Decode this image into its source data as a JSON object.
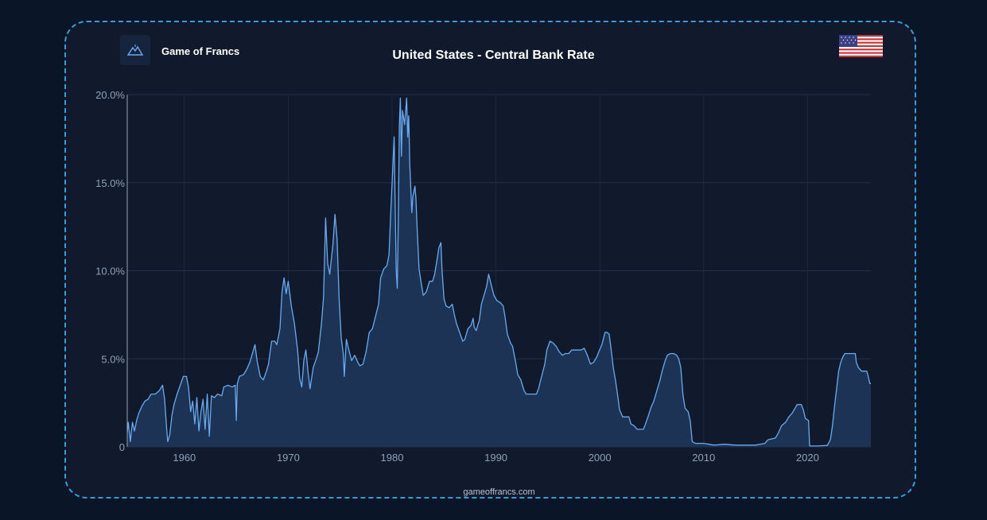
{
  "brand": {
    "name": "Game of Francs",
    "logo_icon": "mountain-logo-icon"
  },
  "flag_icon": "us-flag-icon",
  "footer": "gameoffrancs.com",
  "colors": {
    "background": "#0a1628",
    "card": "#111a2c",
    "border": "#3a9bd9",
    "line": "#6aaaf0",
    "fill": "#1e3557"
  },
  "chart_data": {
    "type": "area",
    "title": "United States - Central Bank Rate",
    "xlabel": "",
    "ylabel": "",
    "xlim": [
      1954.5,
      2026.1
    ],
    "ylim": [
      0,
      20
    ],
    "y_ticks": [
      0,
      5,
      10,
      15,
      20
    ],
    "y_tick_labels": [
      "0",
      "5.0%",
      "10.0%",
      "15.0%",
      "20.0%"
    ],
    "x_ticks": [
      1960,
      1970,
      1980,
      1990,
      2000,
      2010,
      2020
    ],
    "x_tick_labels": [
      "1960",
      "1970",
      "1980",
      "1990",
      "2000",
      "2010",
      "2020"
    ],
    "grid": true,
    "series": [
      {
        "values": [
          [
            1954.5,
            0.8
          ],
          [
            1954.6,
            1.4
          ],
          [
            1954.8,
            0.3
          ],
          [
            1955.0,
            1.4
          ],
          [
            1955.2,
            0.9
          ],
          [
            1955.4,
            1.5
          ],
          [
            1955.6,
            1.9
          ],
          [
            1955.9,
            2.3
          ],
          [
            1956.2,
            2.6
          ],
          [
            1956.5,
            2.7
          ],
          [
            1956.8,
            3.0
          ],
          [
            1957.2,
            3.0
          ],
          [
            1957.6,
            3.2
          ],
          [
            1957.9,
            3.5
          ],
          [
            1958.1,
            2.7
          ],
          [
            1958.3,
            1.0
          ],
          [
            1958.4,
            0.3
          ],
          [
            1958.6,
            0.7
          ],
          [
            1958.8,
            1.8
          ],
          [
            1959.0,
            2.4
          ],
          [
            1959.3,
            3.0
          ],
          [
            1959.6,
            3.5
          ],
          [
            1959.9,
            4.0
          ],
          [
            1960.2,
            4.0
          ],
          [
            1960.4,
            3.4
          ],
          [
            1960.6,
            2.0
          ],
          [
            1960.8,
            2.6
          ],
          [
            1961.0,
            1.3
          ],
          [
            1961.2,
            2.8
          ],
          [
            1961.4,
            0.9
          ],
          [
            1961.6,
            2.0
          ],
          [
            1961.8,
            2.7
          ],
          [
            1962.0,
            1.0
          ],
          [
            1962.2,
            3.0
          ],
          [
            1962.4,
            0.6
          ],
          [
            1962.6,
            2.9
          ],
          [
            1962.9,
            2.8
          ],
          [
            1963.2,
            3.0
          ],
          [
            1963.6,
            2.9
          ],
          [
            1963.8,
            3.4
          ],
          [
            1964.2,
            3.5
          ],
          [
            1964.6,
            3.4
          ],
          [
            1964.9,
            3.5
          ],
          [
            1965.0,
            1.5
          ],
          [
            1965.1,
            3.6
          ],
          [
            1965.3,
            4.0
          ],
          [
            1965.7,
            4.1
          ],
          [
            1966.0,
            4.4
          ],
          [
            1966.3,
            4.8
          ],
          [
            1966.6,
            5.4
          ],
          [
            1966.8,
            5.8
          ],
          [
            1967.0,
            4.9
          ],
          [
            1967.3,
            4.0
          ],
          [
            1967.6,
            3.8
          ],
          [
            1967.9,
            4.3
          ],
          [
            1968.1,
            4.7
          ],
          [
            1968.4,
            6.0
          ],
          [
            1968.7,
            6.0
          ],
          [
            1968.9,
            5.8
          ],
          [
            1969.2,
            6.7
          ],
          [
            1969.4,
            8.8
          ],
          [
            1969.6,
            9.6
          ],
          [
            1969.8,
            8.7
          ],
          [
            1970.0,
            9.4
          ],
          [
            1970.3,
            8.0
          ],
          [
            1970.6,
            7.0
          ],
          [
            1970.9,
            5.5
          ],
          [
            1971.1,
            3.9
          ],
          [
            1971.3,
            3.4
          ],
          [
            1971.5,
            4.9
          ],
          [
            1971.7,
            5.5
          ],
          [
            1971.9,
            4.3
          ],
          [
            1972.1,
            3.3
          ],
          [
            1972.4,
            4.5
          ],
          [
            1972.7,
            5.0
          ],
          [
            1972.9,
            5.4
          ],
          [
            1973.2,
            7.0
          ],
          [
            1973.4,
            8.5
          ],
          [
            1973.6,
            13.0
          ],
          [
            1973.8,
            10.4
          ],
          [
            1974.0,
            9.8
          ],
          [
            1974.3,
            11.5
          ],
          [
            1974.5,
            13.2
          ],
          [
            1974.7,
            11.8
          ],
          [
            1974.9,
            8.4
          ],
          [
            1975.1,
            6.2
          ],
          [
            1975.3,
            5.3
          ],
          [
            1975.4,
            4.0
          ],
          [
            1975.6,
            6.1
          ],
          [
            1975.8,
            5.6
          ],
          [
            1976.1,
            4.9
          ],
          [
            1976.4,
            5.2
          ],
          [
            1976.7,
            4.8
          ],
          [
            1976.9,
            4.6
          ],
          [
            1977.2,
            4.7
          ],
          [
            1977.5,
            5.4
          ],
          [
            1977.8,
            6.5
          ],
          [
            1978.1,
            6.7
          ],
          [
            1978.4,
            7.4
          ],
          [
            1978.7,
            8.1
          ],
          [
            1978.9,
            9.6
          ],
          [
            1979.2,
            10.1
          ],
          [
            1979.5,
            10.3
          ],
          [
            1979.7,
            10.9
          ],
          [
            1979.9,
            13.7
          ],
          [
            1980.0,
            15.0
          ],
          [
            1980.2,
            17.6
          ],
          [
            1980.3,
            13.6
          ],
          [
            1980.4,
            10.0
          ],
          [
            1980.5,
            9.0
          ],
          [
            1980.6,
            12.8
          ],
          [
            1980.7,
            18.2
          ],
          [
            1980.8,
            19.8
          ],
          [
            1980.9,
            16.5
          ],
          [
            1981.0,
            19.1
          ],
          [
            1981.2,
            18.3
          ],
          [
            1981.4,
            19.8
          ],
          [
            1981.5,
            17.6
          ],
          [
            1981.6,
            18.8
          ],
          [
            1981.7,
            16.1
          ],
          [
            1981.9,
            13.3
          ],
          [
            1982.0,
            14.2
          ],
          [
            1982.2,
            14.8
          ],
          [
            1982.3,
            14.1
          ],
          [
            1982.4,
            12.6
          ],
          [
            1982.6,
            10.1
          ],
          [
            1982.8,
            9.3
          ],
          [
            1983.0,
            8.6
          ],
          [
            1983.3,
            8.8
          ],
          [
            1983.6,
            9.4
          ],
          [
            1983.9,
            9.4
          ],
          [
            1984.1,
            9.8
          ],
          [
            1984.3,
            10.5
          ],
          [
            1984.5,
            11.3
          ],
          [
            1984.7,
            11.6
          ],
          [
            1984.8,
            10.1
          ],
          [
            1985.0,
            8.4
          ],
          [
            1985.2,
            8.0
          ],
          [
            1985.5,
            7.9
          ],
          [
            1985.8,
            8.1
          ],
          [
            1986.0,
            7.5
          ],
          [
            1986.2,
            7.0
          ],
          [
            1986.5,
            6.5
          ],
          [
            1986.8,
            6.0
          ],
          [
            1987.0,
            6.1
          ],
          [
            1987.3,
            6.7
          ],
          [
            1987.6,
            6.9
          ],
          [
            1987.8,
            7.3
          ],
          [
            1987.9,
            6.8
          ],
          [
            1988.1,
            6.6
          ],
          [
            1988.4,
            7.2
          ],
          [
            1988.6,
            8.1
          ],
          [
            1988.8,
            8.5
          ],
          [
            1989.1,
            9.1
          ],
          [
            1989.3,
            9.8
          ],
          [
            1989.5,
            9.3
          ],
          [
            1989.8,
            8.6
          ],
          [
            1990.1,
            8.3
          ],
          [
            1990.4,
            8.2
          ],
          [
            1990.7,
            8.0
          ],
          [
            1990.9,
            7.3
          ],
          [
            1991.1,
            6.4
          ],
          [
            1991.4,
            5.9
          ],
          [
            1991.6,
            5.7
          ],
          [
            1991.9,
            4.8
          ],
          [
            1992.1,
            4.1
          ],
          [
            1992.4,
            3.8
          ],
          [
            1992.7,
            3.2
          ],
          [
            1992.9,
            3.0
          ],
          [
            1993.2,
            3.0
          ],
          [
            1993.6,
            3.0
          ],
          [
            1993.9,
            3.0
          ],
          [
            1994.1,
            3.3
          ],
          [
            1994.4,
            4.0
          ],
          [
            1994.7,
            4.7
          ],
          [
            1994.9,
            5.5
          ],
          [
            1995.2,
            6.0
          ],
          [
            1995.5,
            5.9
          ],
          [
            1995.8,
            5.7
          ],
          [
            1996.1,
            5.4
          ],
          [
            1996.4,
            5.2
          ],
          [
            1996.7,
            5.3
          ],
          [
            1997.0,
            5.3
          ],
          [
            1997.3,
            5.5
          ],
          [
            1997.6,
            5.5
          ],
          [
            1997.9,
            5.5
          ],
          [
            1998.2,
            5.5
          ],
          [
            1998.5,
            5.6
          ],
          [
            1998.8,
            5.2
          ],
          [
            1999.1,
            4.7
          ],
          [
            1999.4,
            4.8
          ],
          [
            1999.7,
            5.1
          ],
          [
            1999.9,
            5.4
          ],
          [
            2000.2,
            5.8
          ],
          [
            2000.5,
            6.5
          ],
          [
            2000.7,
            6.5
          ],
          [
            2000.9,
            6.4
          ],
          [
            2001.1,
            5.5
          ],
          [
            2001.3,
            4.5
          ],
          [
            2001.5,
            3.8
          ],
          [
            2001.7,
            3.0
          ],
          [
            2001.9,
            2.1
          ],
          [
            2002.2,
            1.7
          ],
          [
            2002.5,
            1.7
          ],
          [
            2002.8,
            1.7
          ],
          [
            2003.0,
            1.3
          ],
          [
            2003.3,
            1.2
          ],
          [
            2003.6,
            1.0
          ],
          [
            2003.9,
            1.0
          ],
          [
            2004.2,
            1.0
          ],
          [
            2004.4,
            1.3
          ],
          [
            2004.7,
            1.8
          ],
          [
            2004.9,
            2.2
          ],
          [
            2005.2,
            2.6
          ],
          [
            2005.5,
            3.2
          ],
          [
            2005.8,
            3.8
          ],
          [
            2006.0,
            4.3
          ],
          [
            2006.3,
            4.9
          ],
          [
            2006.5,
            5.2
          ],
          [
            2006.8,
            5.3
          ],
          [
            2007.1,
            5.3
          ],
          [
            2007.4,
            5.2
          ],
          [
            2007.6,
            5.0
          ],
          [
            2007.8,
            4.5
          ],
          [
            2008.0,
            3.0
          ],
          [
            2008.2,
            2.2
          ],
          [
            2008.5,
            2.0
          ],
          [
            2008.7,
            1.5
          ],
          [
            2008.9,
            0.3
          ],
          [
            2009.2,
            0.2
          ],
          [
            2009.5,
            0.2
          ],
          [
            2010.0,
            0.2
          ],
          [
            2011.0,
            0.1
          ],
          [
            2012.0,
            0.15
          ],
          [
            2013.0,
            0.1
          ],
          [
            2014.0,
            0.1
          ],
          [
            2015.0,
            0.1
          ],
          [
            2015.9,
            0.2
          ],
          [
            2016.2,
            0.4
          ],
          [
            2016.9,
            0.5
          ],
          [
            2017.2,
            0.8
          ],
          [
            2017.5,
            1.2
          ],
          [
            2017.9,
            1.4
          ],
          [
            2018.2,
            1.7
          ],
          [
            2018.5,
            1.9
          ],
          [
            2018.8,
            2.2
          ],
          [
            2019.0,
            2.4
          ],
          [
            2019.4,
            2.4
          ],
          [
            2019.6,
            2.1
          ],
          [
            2019.8,
            1.6
          ],
          [
            2020.1,
            1.5
          ],
          [
            2020.2,
            0.05
          ],
          [
            2021.0,
            0.05
          ],
          [
            2021.9,
            0.08
          ],
          [
            2022.2,
            0.4
          ],
          [
            2022.4,
            1.2
          ],
          [
            2022.6,
            2.3
          ],
          [
            2022.8,
            3.3
          ],
          [
            2023.0,
            4.3
          ],
          [
            2023.2,
            4.8
          ],
          [
            2023.4,
            5.1
          ],
          [
            2023.6,
            5.3
          ],
          [
            2024.0,
            5.3
          ],
          [
            2024.6,
            5.3
          ],
          [
            2024.7,
            4.8
          ],
          [
            2024.9,
            4.5
          ],
          [
            2025.2,
            4.3
          ],
          [
            2025.7,
            4.3
          ],
          [
            2025.8,
            4.1
          ],
          [
            2026.0,
            3.6
          ],
          [
            2026.1,
            3.6
          ]
        ]
      }
    ]
  }
}
